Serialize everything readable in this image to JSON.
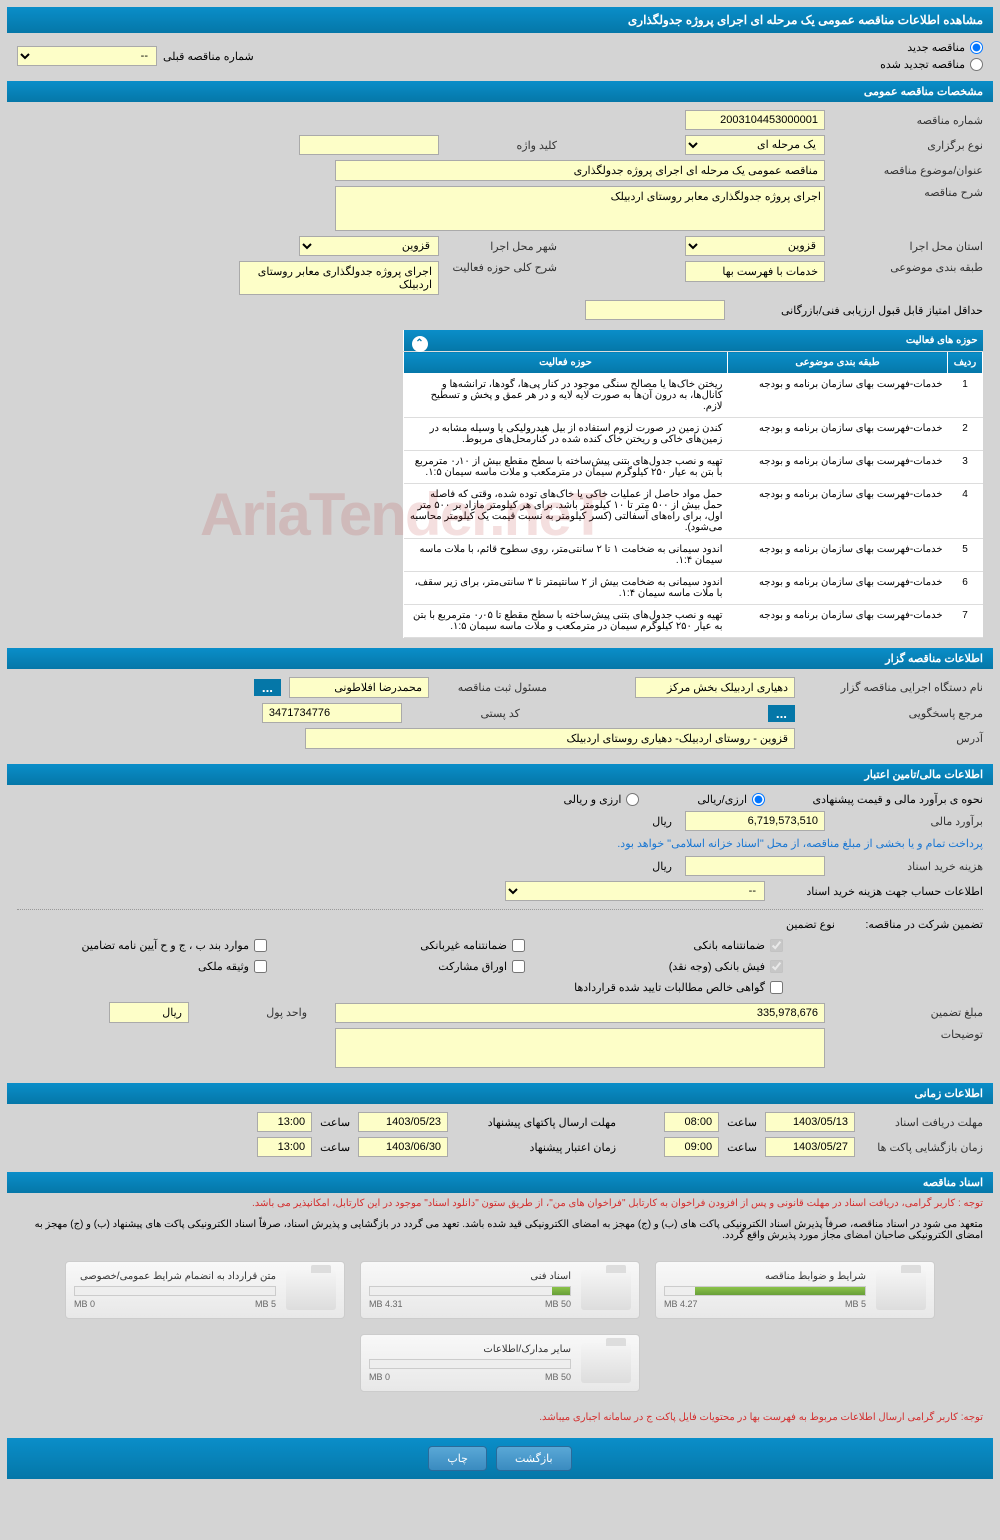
{
  "page_title": "مشاهده اطلاعات مناقصه عمومی یک مرحله ای اجرای پروژه جدولگذاری",
  "radios": {
    "new": "مناقصه جدید",
    "renewed": "مناقصه تجدید شده"
  },
  "prev_tender_label": "شماره مناقصه قبلی",
  "prev_tender_value": "--",
  "sections": {
    "general": "مشخصات مناقصه عمومی",
    "owner": "اطلاعات مناقصه گزار",
    "financial": "اطلاعات مالی/تامین اعتبار",
    "timing": "اطلاعات زمانی",
    "docs": "اسناد مناقصه"
  },
  "general": {
    "tender_no_label": "شماره مناقصه",
    "tender_no": "2003104453000001",
    "type_label": "نوع برگزاری",
    "type": "یک مرحله ای",
    "keyword_label": "کلید واژه",
    "keyword": "",
    "subject_label": "عنوان/موضوع مناقصه",
    "subject": "مناقصه عمومی یک مرحله ای اجرای پروژه جدولگذاری",
    "desc_label": "شرح مناقصه",
    "desc": "اجرای پروژه جدولگذاری معابر روستای اردبیلک",
    "province_label": "استان محل اجرا",
    "province": "قزوین",
    "city_label": "شهر محل اجرا",
    "city": "قزوین",
    "category_label": "طبقه بندی موضوعی",
    "category": "خدمات با فهرست بها",
    "activity_desc_label": "شرح کلی حوزه فعالیت",
    "activity_desc": "اجرای پروژه جدولگذاری معابر روستای اردبیلک",
    "min_score_label": "حداقل امتیاز قابل قبول ارزیابی فنی/بازرگانی"
  },
  "activity_table": {
    "title": "حوزه های فعالیت",
    "cols": [
      "ردیف",
      "طبقه بندی موضوعی",
      "حوزه فعالیت"
    ],
    "cat_text": "خدمات-فهرست بهای سازمان برنامه و بودجه",
    "rows": [
      "ریختن خاک‌ها یا مصالح سنگی موجود در کنار پی‌ها، گودها، ترانشه‌ها و کانال‌ها، به درون آن‌ها به صورت لایه لایه و در هر عمق و پخش و تسطیح لازم.",
      "کندن زمین در صورت لزوم استفاده از بیل هیدرولیکی یا وسیله مشابه در زمین‌های خاکی و ریختن خاک کنده شده در کنارمحل‌های مربوط.",
      "تهیه و نصب جدول‌های بتنی پیش‌ساخته با سطح مقطع بیش از ۰٫۱۰ مترمربع با بتن به عیار ۲۵۰ کیلوگرم سیمان در مترمکعب و ملات ماسه سیمان ۱:۵.",
      "حمل مواد حاصل از عملیات خاکی یا خاک‌های توده شده، وقتی که فاصله حمل بیش از ۵۰۰ متر تا ۱۰ کیلومتر باشد. برای هر کیلومتر مازاد بر ۵۰۰ متر اول، برای راه‌های آسفالتی (کسر کیلومتر به نسبت قیمت یک کیلومتر محاسبه می‌شود).",
      "اندود سیمانی به ضخامت ۱ تا ۲ سانتی‌متر، روی سطوح قائم، با ملات ماسه سیمان ۱:۴.",
      "اندود سیمانی به ضخامت بیش از ۲ سانتیمتر تا ۳ سانتی‌متر، برای زیر سقف، با ملات ماسه سیمان ۱:۴.",
      "تهیه و نصب جدول‌های بتنی پیش‌ساخته با سطح مقطع تا ۰٫۰۵ مترمربع با بتن به عیار ۲۵۰ کیلوگرم سیمان در مترمکعب و ملات ماسه سیمان ۱:۵."
    ]
  },
  "owner": {
    "agency_label": "نام دستگاه اجرایی مناقصه گزار",
    "agency": "دهیاری اردبیلک بخش مرکز",
    "registrar_label": "مسئول ثبت مناقصه",
    "registrar": "محمدرضا افلاطونی",
    "contact_label": "مرجع پاسخگویی",
    "postal_label": "کد پستی",
    "postal": "3471734776",
    "address_label": "آدرس",
    "address": "قزوین - روستای اردبیلک- دهیاری روستای اردبیلک"
  },
  "financial": {
    "estimate_label": "نحوه ی برآورد مالی و قیمت پیشنهادی",
    "rial_option": "ارزی/ریالی",
    "currency_option": "ارزی و ریالی",
    "budget_label": "برآورد مالی",
    "budget": "6,719,573,510",
    "rial": "ریال",
    "source_text": "پرداخت تمام و یا بخشی از مبلغ مناقصه، از محل \"اسناد خزانه اسلامی\" خواهد بود.",
    "doc_cost_label": "هزینه خرید اسناد",
    "account_label": "اطلاعات حساب جهت هزینه خرید اسناد",
    "account_value": "--",
    "guarantee_label": "تضمین شرکت در مناقصه:",
    "guarantee_type_label": "نوع تضمین",
    "checkboxes": {
      "bank_guar": "ضمانتنامه بانکی",
      "nonbank_guar": "ضمانتنامه غیربانکی",
      "items_bjh": "موارد بند ب ، ج و ح آیین نامه تضامین",
      "cash": "فیش بانکی (وجه نقد)",
      "shares": "اوراق مشارکت",
      "property": "وثیقه ملکی",
      "receivables": "گواهی خالص مطالبات تایید شده قراردادها"
    },
    "guarantee_amount_label": "مبلغ تضمین",
    "guarantee_amount": "335,978,676",
    "money_unit_label": "واحد پول",
    "money_unit": "ریال",
    "notes_label": "توضیحات"
  },
  "timing": {
    "doc_receive_label": "مهلت دریافت اسناد",
    "doc_receive_date": "1403/05/13",
    "doc_receive_time": "08:00",
    "proposal_send_label": "مهلت ارسال پاکتهای پیشنهاد",
    "proposal_send_date": "1403/05/23",
    "proposal_send_time": "13:00",
    "open_label": "زمان بازگشایی پاکت ها",
    "open_date": "1403/05/27",
    "open_time": "09:00",
    "validity_label": "زمان اعتبار پیشنهاد",
    "validity_date": "1403/06/30",
    "validity_time": "13:00",
    "time_label": "ساعت"
  },
  "docs": {
    "note1": "توجه : کاربر گرامی، دریافت اسناد در مهلت قانونی و پس از افزودن فراخوان به کارتابل \"فراخوان های من\"، از طریق ستون \"دانلود اسناد\" موجود در این کارتابل، امکانپذیر می باشد.",
    "note2": "متعهد می شود در اسناد مناقصه، صرفاً پذیرش اسناد الکترونیکی پاکت های (ب) و (ج) مهجز به امضای الکترونیکی قید شده باشد. تعهد می گردد در بازگشایی و پذیرش اسناد، صرفاً اسناد الکترونیکی پاکت های پیشنهاد (ب) و (ج) مهجز به امضای الکترونیکی صاحبان امضای مجاز مورد پذیرش واقع گردد.",
    "files": [
      {
        "title": "شرایط و ضوابط مناقصه",
        "used": "4.27 MB",
        "total": "5 MB",
        "pct": 85
      },
      {
        "title": "اسناد فنی",
        "used": "4.31 MB",
        "total": "50 MB",
        "pct": 9
      },
      {
        "title": "متن قرارداد به انضمام شرایط عمومی/خصوصی",
        "used": "0 MB",
        "total": "5 MB",
        "pct": 0
      },
      {
        "title": "سایر مدارک/اطلاعات",
        "used": "0 MB",
        "total": "50 MB",
        "pct": 0
      }
    ],
    "bottom_note": "توجه: کاربر گرامی ارسال اطلاعات مربوط به فهرست بها در محتویات فایل پاکت ج در سامانه اجباری میباشد."
  },
  "buttons": {
    "print": "چاپ",
    "back": "بازگشت"
  },
  "watermark": "AriaTender.neT"
}
